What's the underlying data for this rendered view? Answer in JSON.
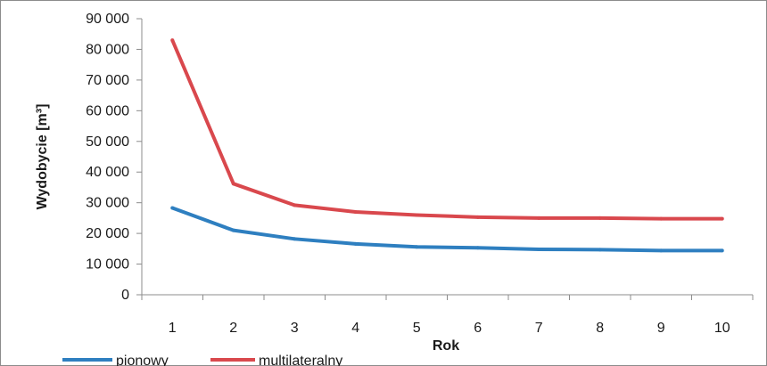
{
  "chart_data": {
    "type": "line",
    "title": "",
    "xlabel": "Rok",
    "ylabel": "Wydobycie [m³]",
    "categories": [
      "1",
      "2",
      "3",
      "4",
      "5",
      "6",
      "7",
      "8",
      "9",
      "10"
    ],
    "y_ticks": [
      "0",
      "10 000",
      "20 000",
      "30 000",
      "40 000",
      "50 000",
      "60 000",
      "70 000",
      "80 000",
      "90 000"
    ],
    "ylim": [
      0,
      90000
    ],
    "grid": false,
    "legend_position": "bottom-left",
    "series": [
      {
        "name": "pionowy",
        "color": "#2e7fc0",
        "values": [
          28300,
          21000,
          18200,
          16600,
          15600,
          15300,
          14800,
          14700,
          14400,
          14400
        ]
      },
      {
        "name": "multilateralny",
        "color": "#d9484d",
        "values": [
          83000,
          36200,
          29200,
          27000,
          26000,
          25300,
          25000,
          25000,
          24800,
          24800
        ]
      }
    ]
  }
}
